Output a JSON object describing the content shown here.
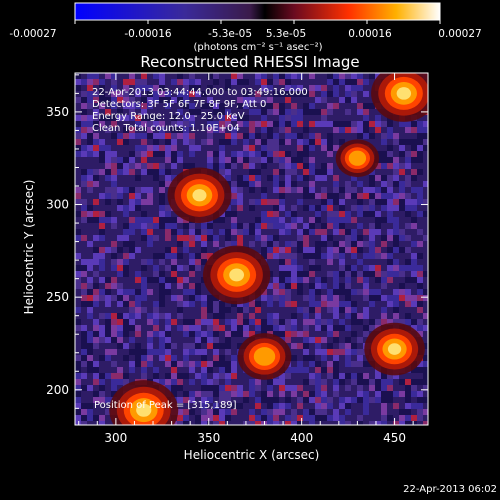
{
  "colorbar": {
    "ticks": [
      "-0.00027",
      "-0.00016",
      "-5.3e-05",
      "5.3e-05",
      "0.00016",
      "0.00027"
    ],
    "unit_label": "(photons cm⁻² s⁻¹ asec⁻²)",
    "range": [
      -0.00027,
      0.00027
    ]
  },
  "chart_data": {
    "type": "heatmap",
    "title": "Reconstructed RHESSI Image",
    "xlabel": "Heliocentric X (arcsec)",
    "ylabel": "Heliocentric Y (arcsec)",
    "xlim": [
      278,
      468
    ],
    "ylim": [
      181,
      371
    ],
    "x_ticks": [
      300,
      350,
      400,
      450
    ],
    "y_ticks": [
      200,
      250,
      300,
      350
    ],
    "annotations": [
      "22-Apr-2013 03:44:44.000 to 03:49:16.000",
      "Detectors: 3F 5F 6F 7F 8F 9F, Att 0",
      "Energy Range: 12.0 - 25.0 keV",
      "Clean     Total counts: 1.10E+04"
    ],
    "peak_label": "Position of Peak = [315,189]",
    "peak_position": [
      315,
      189
    ],
    "bright_sources": [
      {
        "x": 455,
        "y": 360,
        "value": 0.00025
      },
      {
        "x": 345,
        "y": 305,
        "value": 0.00024
      },
      {
        "x": 365,
        "y": 262,
        "value": 0.00026
      },
      {
        "x": 315,
        "y": 189,
        "value": 0.00027
      },
      {
        "x": 450,
        "y": 222,
        "value": 0.00022
      },
      {
        "x": 380,
        "y": 218,
        "value": 0.00018
      },
      {
        "x": 430,
        "y": 325,
        "value": 0.00012
      }
    ]
  },
  "timestamp": "22-Apr-2013 06:02"
}
